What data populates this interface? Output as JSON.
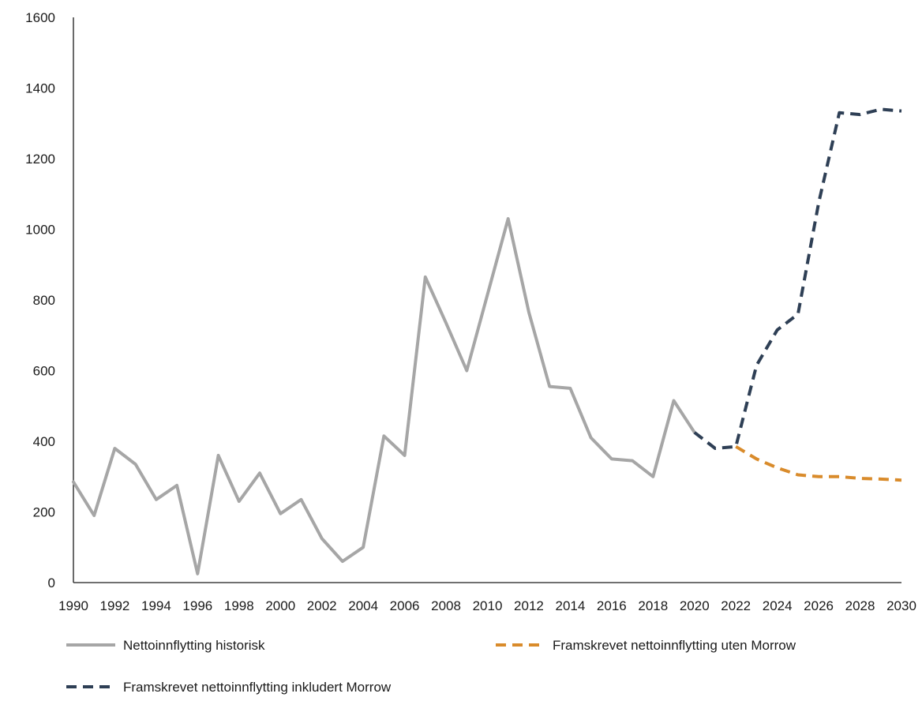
{
  "chart_data": {
    "type": "line",
    "title": "",
    "xlabel": "",
    "ylabel": "",
    "ylim": [
      0,
      1600
    ],
    "xlim": [
      1990,
      2030
    ],
    "yticks": [
      "0",
      "200",
      "400",
      "600",
      "800",
      "1000",
      "1200",
      "1400",
      "1600"
    ],
    "xticks": [
      "1990",
      "1992",
      "1994",
      "1996",
      "1998",
      "2000",
      "2002",
      "2004",
      "2006",
      "2008",
      "2010",
      "2012",
      "2014",
      "2016",
      "2018",
      "2020",
      "2022",
      "2024",
      "2026",
      "2028",
      "2030"
    ],
    "grid": false,
    "legend_position": "bottom",
    "series": [
      {
        "name": "Nettoinnflytting historisk",
        "color": "#a6a6a6",
        "style": "solid",
        "x": [
          1990,
          1991,
          1992,
          1993,
          1994,
          1995,
          1996,
          1997,
          1998,
          1999,
          2000,
          2001,
          2002,
          2003,
          2004,
          2005,
          2006,
          2007,
          2008,
          2009,
          2010,
          2011,
          2012,
          2013,
          2014,
          2015,
          2016,
          2017,
          2018,
          2019,
          2020
        ],
        "values": [
          285,
          190,
          380,
          335,
          235,
          275,
          25,
          360,
          230,
          310,
          195,
          235,
          125,
          60,
          100,
          415,
          360,
          865,
          735,
          600,
          815,
          1030,
          765,
          555,
          550,
          410,
          350,
          345,
          300,
          515,
          425
        ]
      },
      {
        "name": "Framskrevet nettoinnflytting uten Morrow",
        "color": "#d98b2b",
        "style": "dashed",
        "x": [
          2022,
          2023,
          2024,
          2025,
          2026,
          2027,
          2028,
          2029,
          2030
        ],
        "values": [
          385,
          350,
          325,
          305,
          300,
          300,
          295,
          293,
          290
        ]
      },
      {
        "name": "Framskrevet nettoinnflytting inkludert Morrow",
        "color": "#2e3f55",
        "style": "dashed",
        "x": [
          2020,
          2021,
          2022,
          2023,
          2024,
          2025,
          2026,
          2027,
          2028,
          2029,
          2030
        ],
        "values": [
          425,
          380,
          385,
          615,
          715,
          760,
          1075,
          1330,
          1325,
          1340,
          1335
        ]
      }
    ]
  }
}
